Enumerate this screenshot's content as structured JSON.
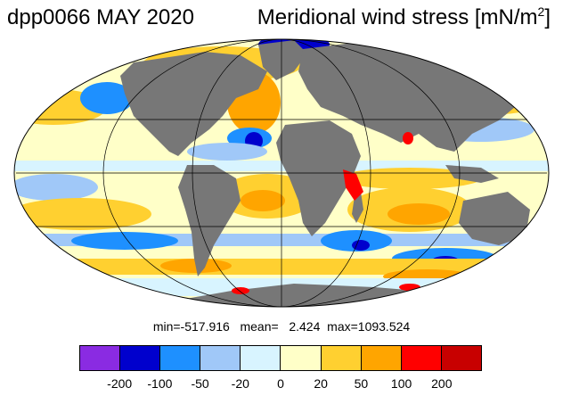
{
  "header": {
    "experiment_title": "dpp0066 MAY 2020",
    "variable_title": "Meridional wind stress [mN/m",
    "variable_unit_exponent": "2",
    "variable_title_end": "]"
  },
  "stats": {
    "text": "min=-517.916   mean=   2.424  max=1093.524"
  },
  "colorbar": {
    "colors": [
      "#8a2be2",
      "#0000cd",
      "#1e90ff",
      "#a0c8f8",
      "#d8f4ff",
      "#ffffc8",
      "#ffd030",
      "#ffa500",
      "#ff0000",
      "#c80000"
    ],
    "tick_labels": [
      "-200",
      "-100",
      "-50",
      "-20",
      "0",
      "20",
      "50",
      "100",
      "200"
    ]
  },
  "map_colors": {
    "land": "#777777",
    "ocean_base": "#ffffc8",
    "grid": "#000000"
  }
}
